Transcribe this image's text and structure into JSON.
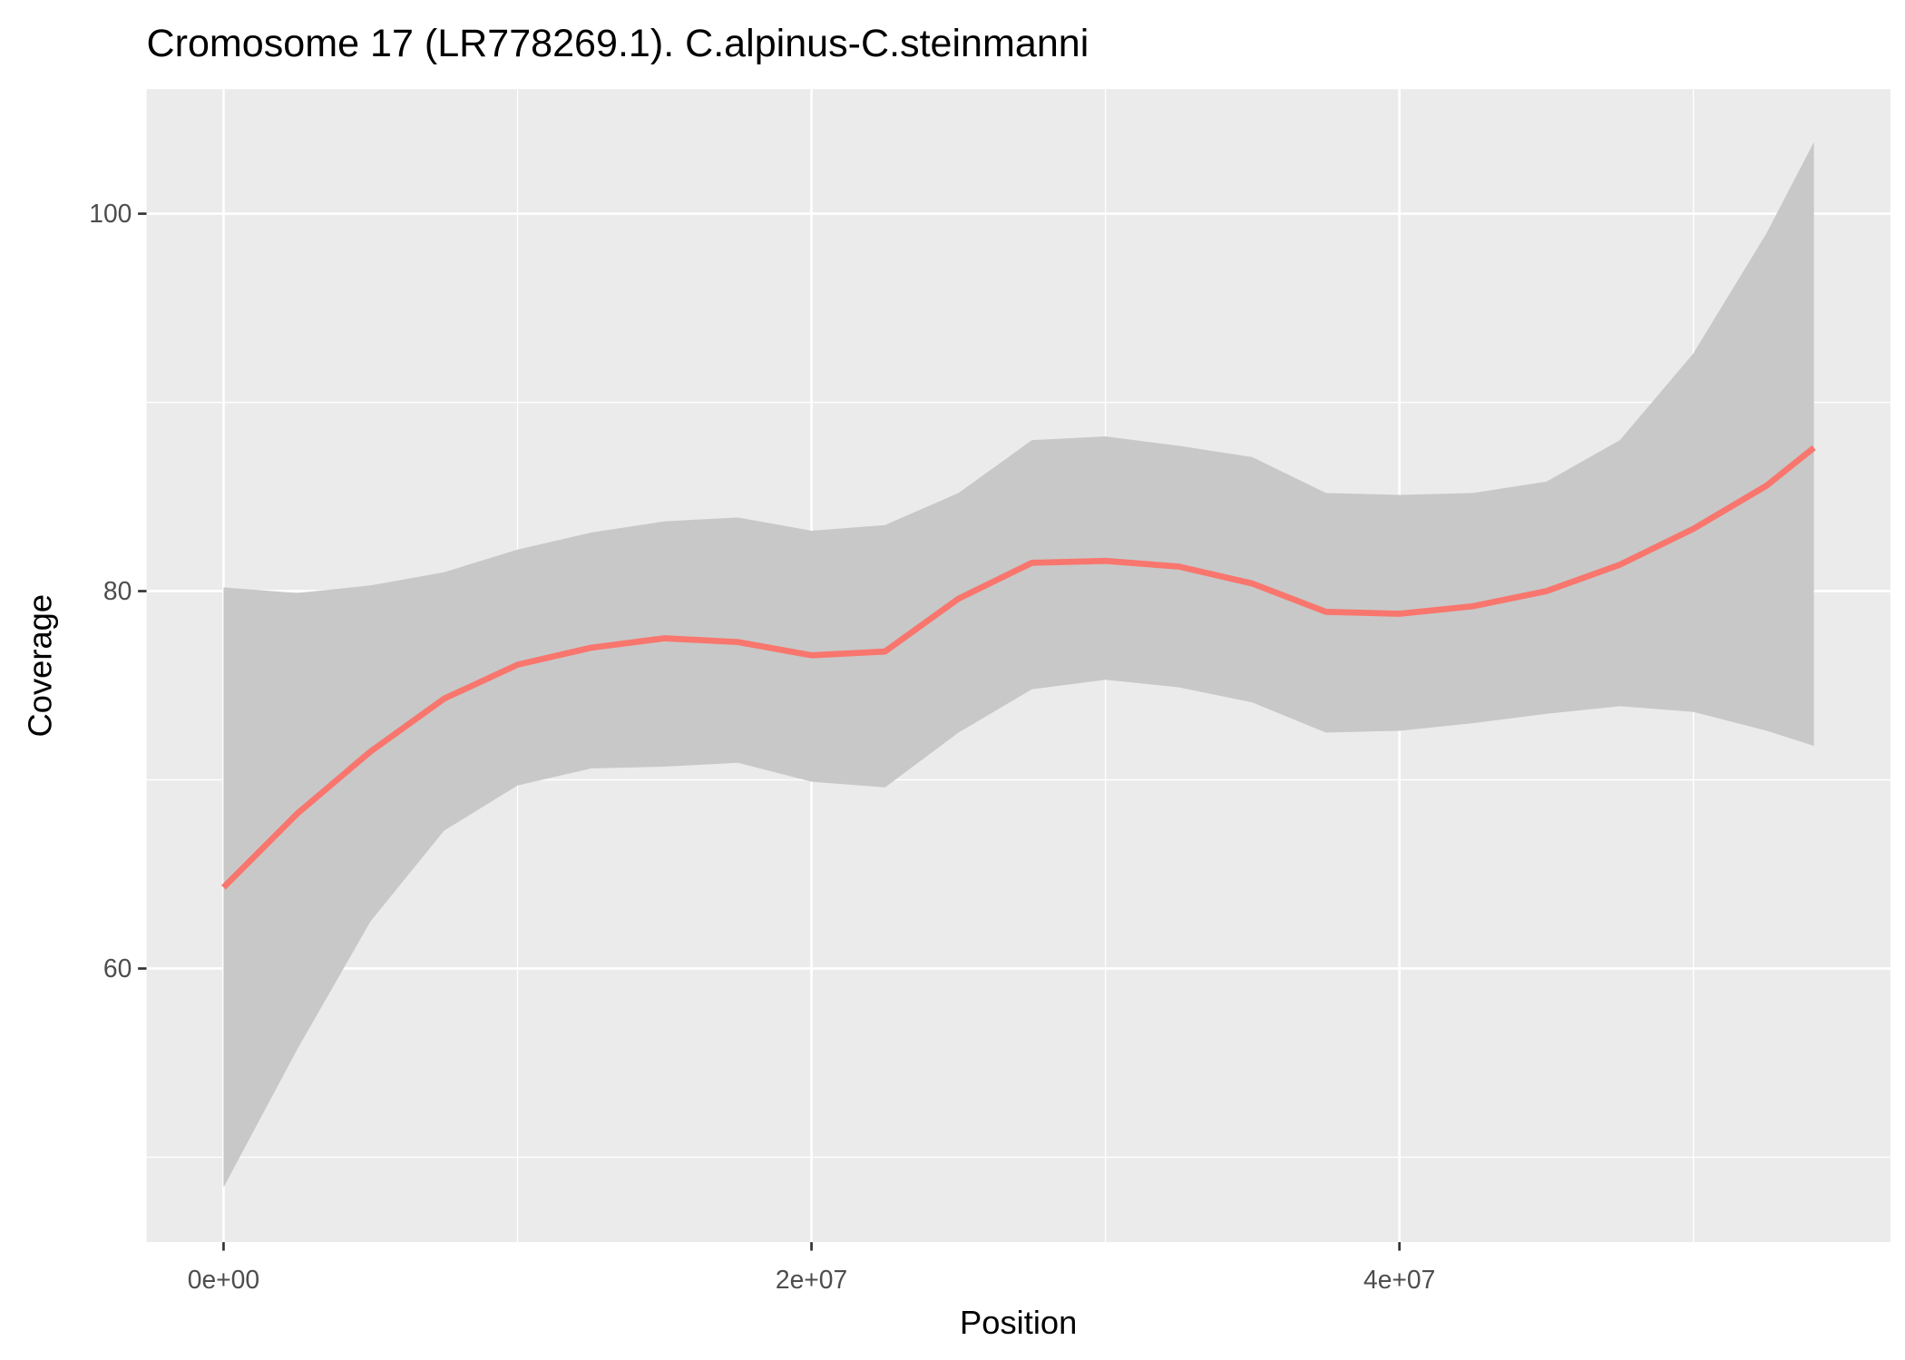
{
  "chart_data": {
    "type": "smooth",
    "title": "Cromosome 17 (LR778269.1). C.alpinus-C.steinmanni",
    "x_label": "Position",
    "y_label": "Coverage",
    "x": [
      0,
      2500000,
      5000000,
      7500000,
      10000000,
      12500000,
      15000000,
      17500000,
      20000000,
      22500000,
      25000000,
      27500000,
      30000000,
      32500000,
      35000000,
      37500000,
      40000000,
      42500000,
      45000000,
      47500000,
      50000000,
      52500000,
      54100000
    ],
    "values": [
      64.3,
      68.2,
      71.5,
      74.3,
      76.1,
      77.0,
      77.5,
      77.3,
      76.6,
      76.8,
      79.6,
      81.5,
      81.6,
      81.3,
      80.4,
      78.9,
      78.8,
      79.2,
      80.0,
      81.4,
      83.3,
      85.6,
      87.6
    ],
    "upper": [
      80.2,
      79.9,
      80.3,
      81.0,
      82.2,
      83.1,
      83.7,
      83.9,
      83.2,
      83.5,
      85.2,
      88.0,
      88.2,
      87.7,
      87.1,
      85.2,
      85.1,
      85.2,
      85.8,
      88.0,
      92.6,
      99.0,
      103.8
    ],
    "lower": [
      48.4,
      55.7,
      62.5,
      67.3,
      69.7,
      70.6,
      70.7,
      70.9,
      69.9,
      69.6,
      72.5,
      74.8,
      75.3,
      74.9,
      74.1,
      72.5,
      72.6,
      73.0,
      73.5,
      73.9,
      73.6,
      72.6,
      71.8
    ],
    "color": "#f8766d",
    "band_color": "#c8c8c8",
    "xlim": [
      -2620000,
      56700000
    ],
    "ylim": [
      45.5,
      106.6
    ],
    "xticks": [
      {
        "value": 0,
        "label": "0e+00"
      },
      {
        "value": 20000000,
        "label": "2e+07"
      },
      {
        "value": 40000000,
        "label": "4e+07"
      }
    ],
    "yticks": [
      60,
      80,
      100
    ],
    "x_minor_ticks": [
      10000000,
      30000000,
      50000000
    ],
    "y_minor_ticks": [
      50,
      70,
      90
    ],
    "grid": true
  }
}
